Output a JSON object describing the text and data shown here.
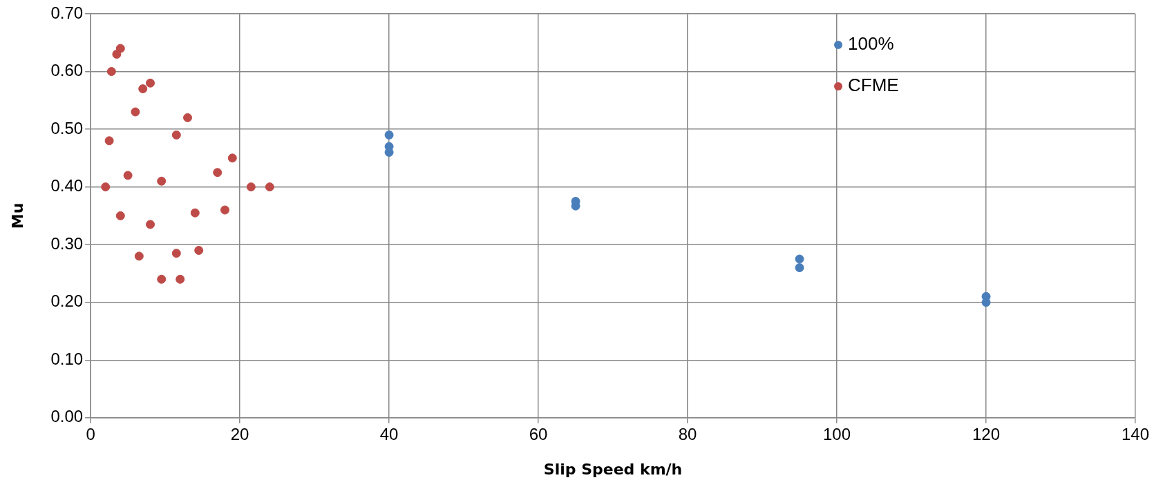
{
  "chart_data": {
    "type": "scatter",
    "xlabel": "Slip Speed km/h",
    "ylabel": "Mu",
    "xlim": [
      0,
      140
    ],
    "xticks": [
      0,
      20,
      40,
      60,
      80,
      100,
      120,
      140
    ],
    "ylim": [
      0,
      0.7
    ],
    "yticks": [
      {
        "value": 0,
        "label": "0.00"
      },
      {
        "value": 0.1,
        "label": "0.10"
      },
      {
        "value": 0.2,
        "label": "0.20"
      },
      {
        "value": 0.3,
        "label": "0.30"
      },
      {
        "value": 0.4,
        "label": "0.40"
      },
      {
        "value": 0.5,
        "label": "0.50"
      },
      {
        "value": 0.6,
        "label": "0.60"
      },
      {
        "value": 0.7,
        "label": "0.70"
      }
    ],
    "grid": true,
    "legend": "top right",
    "marker": "circle",
    "series": [
      {
        "name": "100%",
        "color": "#4a7ebb",
        "x": [
          40,
          40,
          40,
          65,
          65,
          95,
          95,
          120,
          120
        ],
        "values": [
          0.49,
          0.47,
          0.46,
          0.375,
          0.367,
          0.275,
          0.26,
          0.21,
          0.2
        ]
      },
      {
        "name": "CFME",
        "color": "#be4b48",
        "x": [
          4,
          3.5,
          2.8,
          8,
          7,
          6,
          13,
          2.5,
          11.5,
          5,
          2,
          9.5,
          17,
          19,
          21.5,
          24,
          4,
          8,
          14,
          18,
          6.5,
          11.5,
          14.5,
          9.5,
          12
        ],
        "values": [
          0.64,
          0.63,
          0.6,
          0.58,
          0.57,
          0.53,
          0.52,
          0.48,
          0.49,
          0.42,
          0.4,
          0.41,
          0.425,
          0.45,
          0.4,
          0.4,
          0.35,
          0.335,
          0.355,
          0.36,
          0.28,
          0.285,
          0.29,
          0.24,
          0.24
        ]
      }
    ]
  }
}
